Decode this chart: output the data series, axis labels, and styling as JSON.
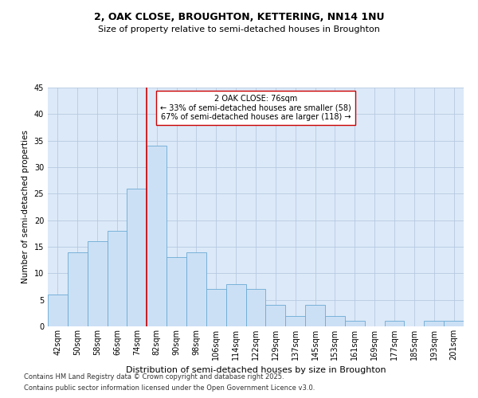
{
  "title1": "2, OAK CLOSE, BROUGHTON, KETTERING, NN14 1NU",
  "title2": "Size of property relative to semi-detached houses in Broughton",
  "xlabel": "Distribution of semi-detached houses by size in Broughton",
  "ylabel": "Number of semi-detached properties",
  "categories": [
    "42sqm",
    "50sqm",
    "58sqm",
    "66sqm",
    "74sqm",
    "82sqm",
    "90sqm",
    "98sqm",
    "106sqm",
    "114sqm",
    "122sqm",
    "129sqm",
    "137sqm",
    "145sqm",
    "153sqm",
    "161sqm",
    "169sqm",
    "177sqm",
    "185sqm",
    "193sqm",
    "201sqm"
  ],
  "values": [
    6,
    14,
    16,
    18,
    26,
    34,
    13,
    14,
    7,
    8,
    7,
    4,
    2,
    4,
    2,
    1,
    0,
    1,
    0,
    1,
    1
  ],
  "bar_color": "#cce0f5",
  "bar_edge_color": "#6aaad4",
  "bar_width": 1.0,
  "vline_position": 4.5,
  "vline_color": "#cc0000",
  "property_label": "2 OAK CLOSE: 76sqm",
  "annotation_line1": "← 33% of semi-detached houses are smaller (58)",
  "annotation_line2": "67% of semi-detached houses are larger (118) →",
  "annotation_box_color": "#ffffff",
  "annotation_box_edge": "#cc0000",
  "ylim": [
    0,
    45
  ],
  "yticks": [
    0,
    5,
    10,
    15,
    20,
    25,
    30,
    35,
    40,
    45
  ],
  "background_color": "#dce9f8",
  "grid_color": "#b0c4de",
  "footnote1": "Contains HM Land Registry data © Crown copyright and database right 2025.",
  "footnote2": "Contains public sector information licensed under the Open Government Licence v3.0.",
  "title1_fontsize": 9,
  "title2_fontsize": 8,
  "ylabel_fontsize": 7.5,
  "xlabel_fontsize": 8,
  "tick_fontsize": 7,
  "annotation_fontsize": 7,
  "footnote_fontsize": 6
}
